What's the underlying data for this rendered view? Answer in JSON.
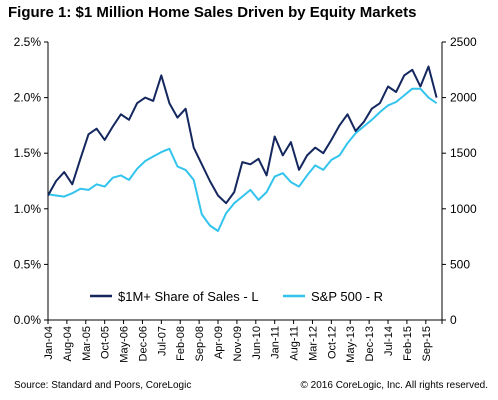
{
  "title": "Figure 1: $1 Million Home Sales Driven by Equity Markets",
  "source": "Source: Standard and Poors, CoreLogic",
  "copyright": "© 2016 CoreLogic, Inc.  All rights reserved.",
  "colors": {
    "share_line": "#14275e",
    "sp500_line": "#33c4ee",
    "axis": "#000000",
    "background": "#ffffff"
  },
  "chart_data": {
    "type": "line",
    "grid": false,
    "legend_position": "bottom-center",
    "left_axis": {
      "ylim": [
        0,
        2.5
      ],
      "ticks": [
        0,
        0.5,
        1.0,
        1.5,
        2.0,
        2.5
      ],
      "tick_labels": [
        "0.0%",
        "0.5%",
        "1.0%",
        "1.5%",
        "2.0%",
        "2.5%"
      ]
    },
    "right_axis": {
      "ylim": [
        0,
        2500
      ],
      "ticks": [
        0,
        500,
        1000,
        1500,
        2000,
        2500
      ],
      "tick_labels": [
        "0",
        "500",
        "1000",
        "1500",
        "2000",
        "2500"
      ]
    },
    "x_tick_labels": [
      "Jan-04",
      "Aug-04",
      "Mar-05",
      "Oct-05",
      "May-06",
      "Dec-06",
      "Jul-07",
      "Feb-08",
      "Sep-08",
      "Apr-09",
      "Nov-09",
      "Jun-10",
      "Jan-11",
      "Aug-11",
      "Mar-12",
      "Oct-12",
      "May-13",
      "Dec-13",
      "Jul-14",
      "Feb-15",
      "Sep-15"
    ],
    "x_start": "2004-01",
    "series": [
      {
        "name": "$1M+ Share of Sales - L",
        "axis": "left",
        "x": [
          "2004-01",
          "2004-04",
          "2004-07",
          "2004-10",
          "2005-01",
          "2005-04",
          "2005-07",
          "2005-10",
          "2006-01",
          "2006-04",
          "2006-07",
          "2006-10",
          "2007-01",
          "2007-04",
          "2007-07",
          "2007-10",
          "2008-01",
          "2008-04",
          "2008-07",
          "2008-10",
          "2009-01",
          "2009-04",
          "2009-07",
          "2009-10",
          "2010-01",
          "2010-04",
          "2010-07",
          "2010-10",
          "2011-01",
          "2011-04",
          "2011-07",
          "2011-10",
          "2012-01",
          "2012-04",
          "2012-07",
          "2012-10",
          "2013-01",
          "2013-04",
          "2013-07",
          "2013-10",
          "2014-01",
          "2014-04",
          "2014-07",
          "2014-10",
          "2015-01",
          "2015-04",
          "2015-07",
          "2015-10",
          "2016-01"
        ],
        "values": [
          1.12,
          1.25,
          1.33,
          1.22,
          1.45,
          1.67,
          1.72,
          1.62,
          1.74,
          1.85,
          1.8,
          1.95,
          2.0,
          1.97,
          2.2,
          1.95,
          1.82,
          1.9,
          1.55,
          1.4,
          1.25,
          1.12,
          1.05,
          1.15,
          1.42,
          1.4,
          1.45,
          1.3,
          1.65,
          1.48,
          1.6,
          1.35,
          1.48,
          1.55,
          1.5,
          1.62,
          1.75,
          1.85,
          1.7,
          1.78,
          1.9,
          1.95,
          2.1,
          2.05,
          2.2,
          2.25,
          2.1,
          2.28,
          2.0
        ]
      },
      {
        "name": "S&P 500 - R",
        "axis": "right",
        "x": [
          "2004-01",
          "2004-04",
          "2004-07",
          "2004-10",
          "2005-01",
          "2005-04",
          "2005-07",
          "2005-10",
          "2006-01",
          "2006-04",
          "2006-07",
          "2006-10",
          "2007-01",
          "2007-04",
          "2007-07",
          "2007-10",
          "2008-01",
          "2008-04",
          "2008-07",
          "2008-10",
          "2009-01",
          "2009-04",
          "2009-07",
          "2009-10",
          "2010-01",
          "2010-04",
          "2010-07",
          "2010-10",
          "2011-01",
          "2011-04",
          "2011-07",
          "2011-10",
          "2012-01",
          "2012-04",
          "2012-07",
          "2012-10",
          "2013-01",
          "2013-04",
          "2013-07",
          "2013-10",
          "2014-01",
          "2014-04",
          "2014-07",
          "2014-10",
          "2015-01",
          "2015-04",
          "2015-07",
          "2015-10",
          "2016-01"
        ],
        "values": [
          1130,
          1120,
          1110,
          1140,
          1180,
          1170,
          1220,
          1200,
          1280,
          1300,
          1260,
          1360,
          1430,
          1470,
          1510,
          1540,
          1380,
          1350,
          1260,
          950,
          850,
          800,
          960,
          1050,
          1110,
          1170,
          1080,
          1150,
          1290,
          1320,
          1240,
          1200,
          1300,
          1390,
          1350,
          1440,
          1480,
          1590,
          1680,
          1740,
          1800,
          1870,
          1930,
          1960,
          2020,
          2080,
          2080,
          2000,
          1950
        ]
      }
    ]
  }
}
